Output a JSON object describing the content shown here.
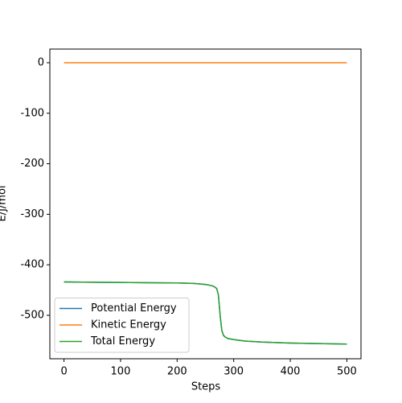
{
  "chart_data": {
    "type": "line",
    "x_label": "Steps",
    "y_label": "E/J/mol",
    "x": [
      0,
      50,
      100,
      150,
      200,
      230,
      250,
      260,
      265,
      270,
      273,
      276,
      279,
      282,
      285,
      290,
      300,
      320,
      350,
      400,
      450,
      500
    ],
    "series": [
      {
        "name": "Potential Energy",
        "color": "#1f77b4",
        "values": [
          -434,
          -434.5,
          -435,
          -435.5,
          -436,
          -437,
          -439,
          -441,
          -443,
          -447,
          -460,
          -500,
          -530,
          -540,
          -543,
          -546,
          -548,
          -551,
          -553,
          -555,
          -556,
          -557
        ]
      },
      {
        "name": "Kinetic Energy",
        "color": "#ff7f0e",
        "values": [
          0,
          0,
          0,
          0,
          0,
          0,
          0,
          0,
          0,
          0,
          0,
          0,
          0,
          0,
          0,
          0,
          0,
          0,
          0,
          0,
          0,
          0
        ]
      },
      {
        "name": "Total Energy",
        "color": "#2ca02c",
        "values": [
          -434,
          -434.5,
          -435,
          -435.5,
          -436,
          -437,
          -439,
          -441,
          -443,
          -447,
          -460,
          -500,
          -530,
          -540,
          -543,
          -546,
          -548,
          -551,
          -553,
          -555,
          -556,
          -557
        ]
      }
    ],
    "xlim": [
      -25,
      525
    ],
    "xticks": [
      0,
      100,
      200,
      300,
      400,
      500
    ],
    "ylim": [
      -586,
      27
    ],
    "yticks": [
      0,
      -100,
      -200,
      -300,
      -400,
      -500
    ],
    "legend": "lower left"
  }
}
